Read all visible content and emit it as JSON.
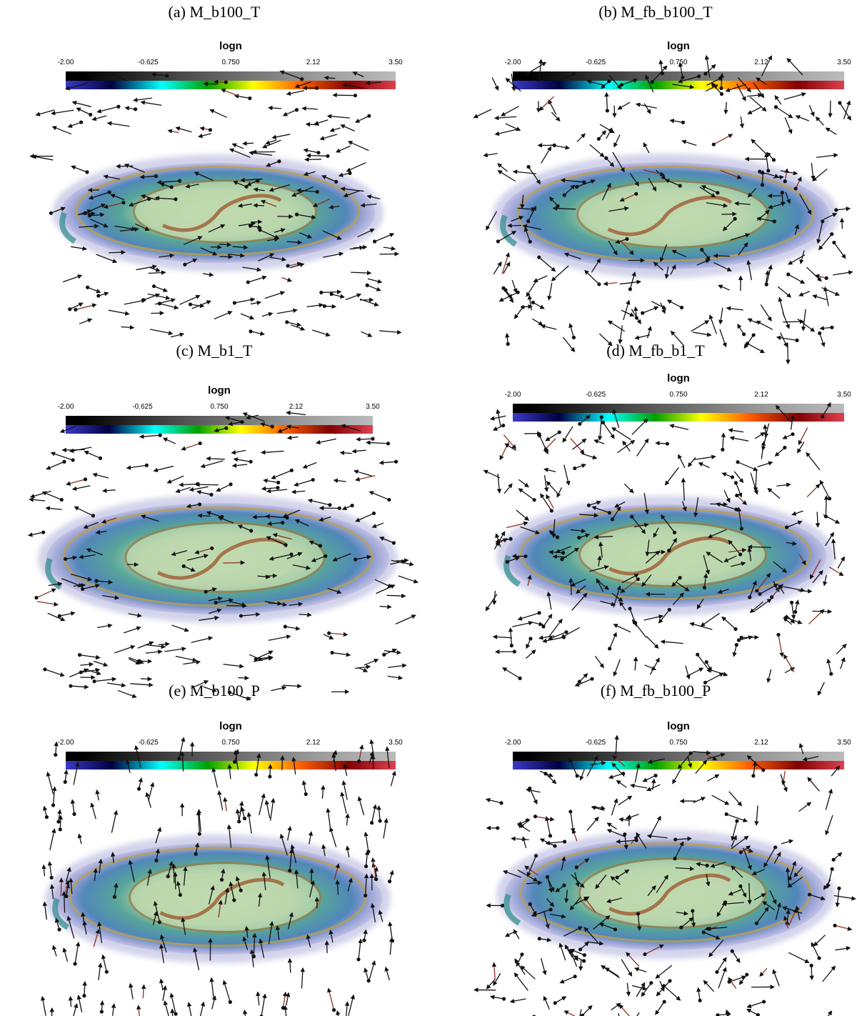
{
  "panels": [
    {
      "title": "(a) M_b100_T",
      "field_style": "toroidal",
      "disk": "standard"
    },
    {
      "title": "(b) M_fb_b100_T",
      "field_style": "turbulent",
      "disk": "feedback"
    },
    {
      "title": "(c) M_b1_T",
      "field_style": "toroidal",
      "disk": "standard"
    },
    {
      "title": "(d) M_fb_b1_T",
      "field_style": "turbulent",
      "disk": "feedback"
    },
    {
      "title": "(e) M_b100_P",
      "field_style": "poloidal",
      "disk": "standard"
    },
    {
      "title": "(f) M_fb_b100_P",
      "field_style": "turbulent",
      "disk": "feedback"
    }
  ],
  "colorbar": {
    "label": "logn",
    "ticks": [
      "-2.00",
      "-0.625",
      "0.750",
      "2.12",
      "3.50"
    ],
    "range": [
      -2.0,
      3.5
    ],
    "colors": [
      "#3a3ac8",
      "#000040",
      "#00ffff",
      "#00a000",
      "#ffff00",
      "#ff6000",
      "#800000",
      "#e04050"
    ]
  }
}
